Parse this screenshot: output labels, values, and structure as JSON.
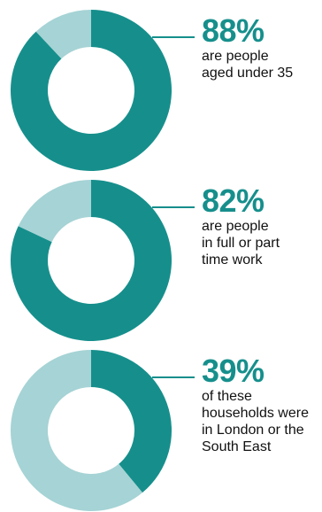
{
  "colors": {
    "primary": "#168f8c",
    "secondary": "#a6d3d5",
    "text": "#111111"
  },
  "chart_data": [
    {
      "type": "pie",
      "style": "donut",
      "values": [
        88,
        12
      ],
      "percent_label": "88%",
      "description": "are people\naged under 35"
    },
    {
      "type": "pie",
      "style": "donut",
      "values": [
        82,
        18
      ],
      "percent_label": "82%",
      "description": "are people\nin full or part\ntime work"
    },
    {
      "type": "pie",
      "style": "donut",
      "values": [
        39,
        61
      ],
      "percent_label": "39%",
      "description": "of these\nhouseholds were\nin London or the\nSouth East"
    }
  ]
}
